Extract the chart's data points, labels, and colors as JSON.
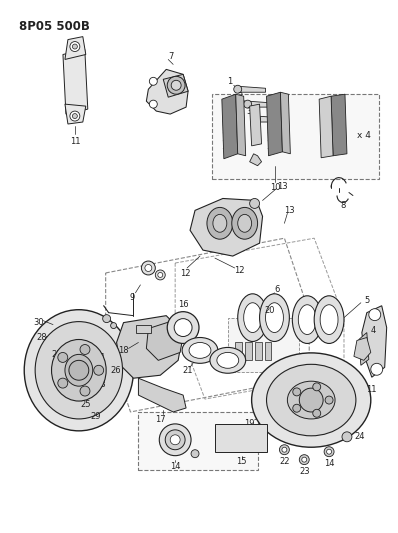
{
  "title": "8P05 500B",
  "bg_color": "#ffffff",
  "fig_width": 3.98,
  "fig_height": 5.33,
  "dpi": 100,
  "lc": "#222222",
  "title_fontsize": 8.5,
  "label_fontsize": 6.0
}
